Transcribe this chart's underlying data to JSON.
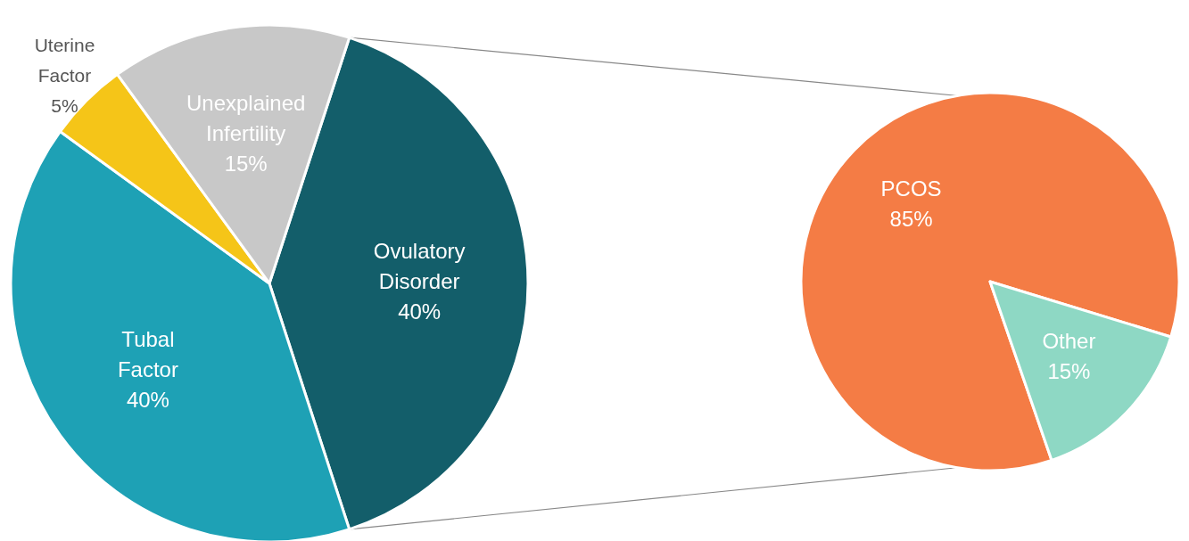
{
  "chart_data": [
    {
      "type": "pie",
      "categories": [
        "Ovulatory Disorder",
        "Tubal Factor",
        "Uterine Factor",
        "Unexplained Infertility"
      ],
      "values": [
        40,
        40,
        5,
        15
      ],
      "colors": [
        "#135e6a",
        "#1ea1b5",
        "#f5c518",
        "#c8c8c8"
      ],
      "value_labels": [
        "40%",
        "40%",
        "5%",
        "15%"
      ]
    },
    {
      "type": "pie",
      "categories": [
        "PCOS",
        "Other"
      ],
      "values": [
        85,
        15
      ],
      "colors": [
        "#f47c45",
        "#8ed8c4"
      ],
      "value_labels": [
        "85%",
        "15%"
      ]
    }
  ]
}
